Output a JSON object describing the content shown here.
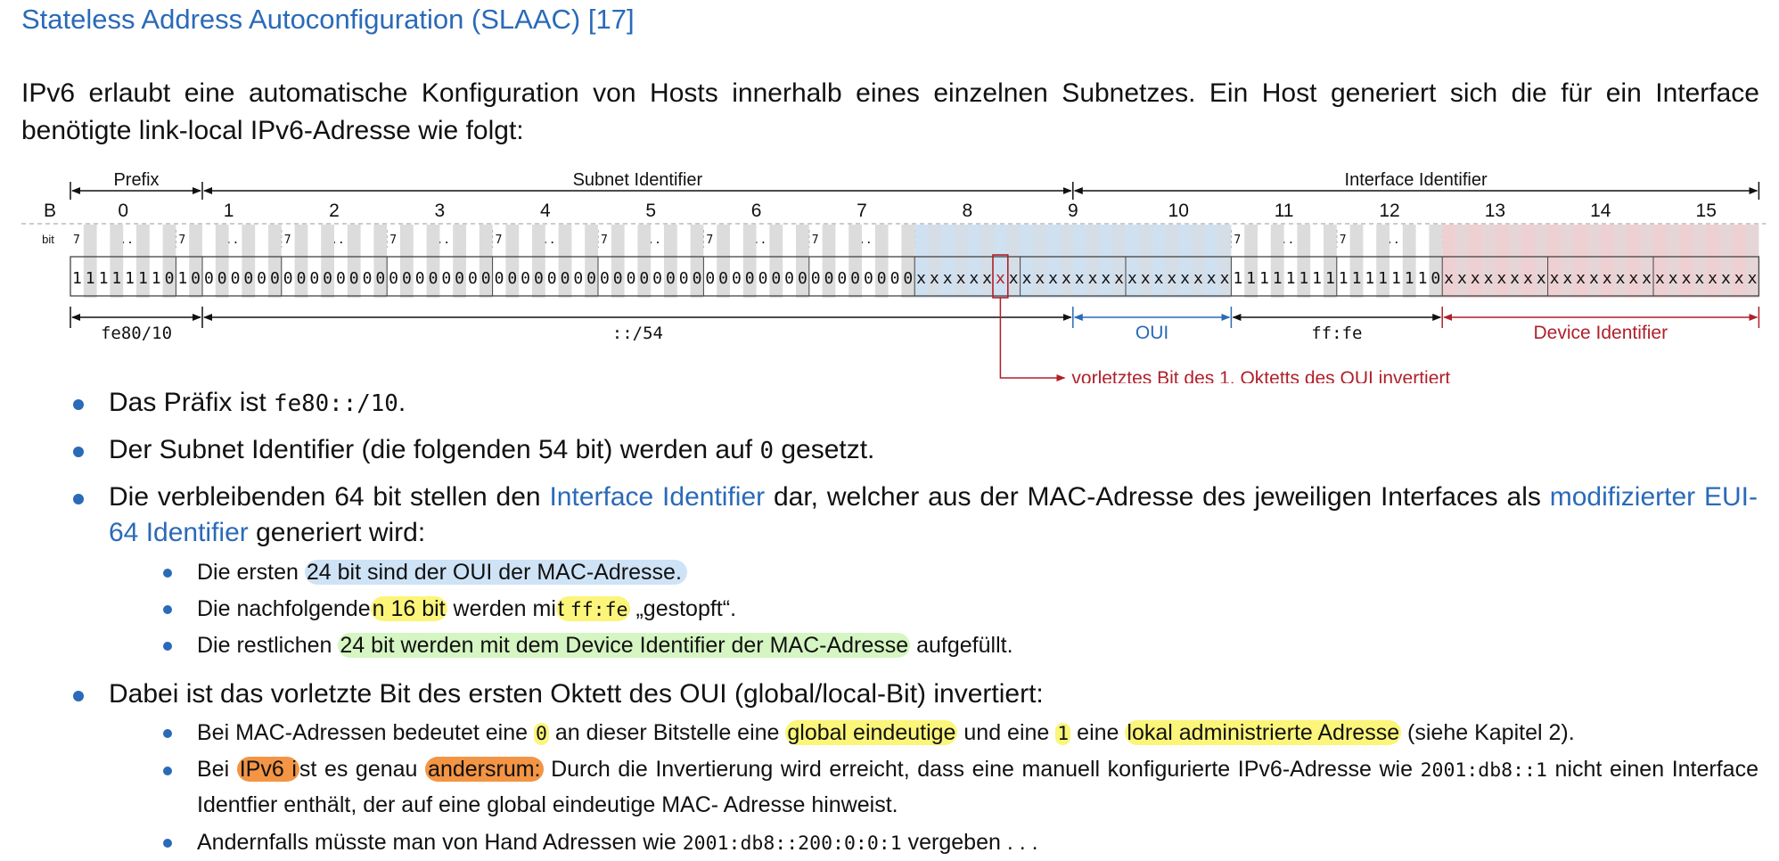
{
  "title": "Stateless Address Autoconfiguration (SLAAC) [17]",
  "intro": "IPv6 erlaubt eine automatische Konfiguration von Hosts innerhalb eines einzelnen Subnetzes. Ein Host generiert sich die für ein Interface benötigte link-local IPv6-Adresse wie folgt:",
  "diagram": {
    "top_labels": {
      "prefix": "Prefix",
      "subnet": "Subnet Identifier",
      "interface": "Interface Identifier"
    },
    "byte_row_label": "B",
    "bit_row_label": "bit",
    "byte_numbers": [
      "0",
      "1",
      "2",
      "3",
      "4",
      "5",
      "6",
      "7",
      "8",
      "9",
      "10",
      "11",
      "12",
      "13",
      "14",
      "15"
    ],
    "bit_markers": {
      "high": "7",
      "low": "0",
      "mid": "..."
    },
    "bits": "1111111010000000000000000000000000000000000000000000000000000000xxxxxxxxxxxxxxxxxxxxxxxx1111111111111110xxxxxxxxxxxxxxxxxxxxxxxx",
    "inverted_bit_index": 70,
    "bottom_labels": {
      "prefix": "fe80/10",
      "subnet": "::/54",
      "oui": "OUI",
      "fffe": "ff:fe",
      "device": "Device Identifier"
    },
    "annotation": "vorletztes Bit des 1. Oktetts des OUI invertiert",
    "colors": {
      "accent": "#2a6ab8",
      "oui_fill": "#cfe0f0",
      "device_fill": "#eed0d3",
      "device_color": "#b01f2a",
      "stripe": "#dcdcdc"
    }
  },
  "bullets": {
    "b1": {
      "pre": "Das Präfix ist ",
      "code": "fe80::/10",
      "post": "."
    },
    "b2": {
      "pre": "Der Subnet Identifier (die folgenden 54 bit) werden auf ",
      "code": "0",
      "post": " gesetzt."
    },
    "b3": {
      "pre": "Die verbleibenden 64 bit stellen den ",
      "link1": "Interface Identifier",
      "mid": " dar, welcher aus der MAC-Adresse des jeweiligen Interfaces als ",
      "link2": "modifizierter EUI-64 Identifier",
      "post": " generiert wird:"
    },
    "b3a": {
      "pre": "Die ersten ",
      "hl": "24 bit sind der OUI der MAC-Adresse."
    },
    "b3b": {
      "pre": "Die nachfolgende",
      "hl1": "n 16 bit",
      "mid": " werden mi",
      "hl2": "t ",
      "code": "ff:fe",
      "post": " „gestopft“."
    },
    "b3c": {
      "pre": "Die restlichen ",
      "hl": "24 bit werden mit dem Device Identifier der MAC-Adresse",
      "post": " aufgefüllt."
    },
    "b4": {
      "text": "Dabei ist das vorletzte Bit des ersten Oktett des OUI (global/local-Bit) invertiert:"
    },
    "b4a": {
      "pre": "Bei MAC-Adressen bedeutet eine ",
      "code0": "0",
      "mid1": " an dieser Bitstelle eine ",
      "hl1": "global eindeutige",
      "mid2": " und eine ",
      "code1": "1",
      "mid3": " eine ",
      "hl2": "lokal administrierte Adresse",
      "post": " (siehe Kapitel 2)."
    },
    "b4b": {
      "pre": "Bei ",
      "hl1": "IPv6 i",
      "mid": "st es genau ",
      "hl2": "andersrum:",
      "post1": " Durch die Invertierung wird erreicht, dass eine manuell konfigurierte IPv6-Adresse wie ",
      "code": "2001:db8::1",
      "post2": " nicht einen Interface Identfier enthält, der auf eine global eindeutige MAC- Adresse hinweist."
    },
    "b4c": {
      "pre": "Andernfalls müsste man von Hand Adressen wie ",
      "code": "2001:db8::200:0:0:1",
      "post": " vergeben . . ."
    }
  }
}
